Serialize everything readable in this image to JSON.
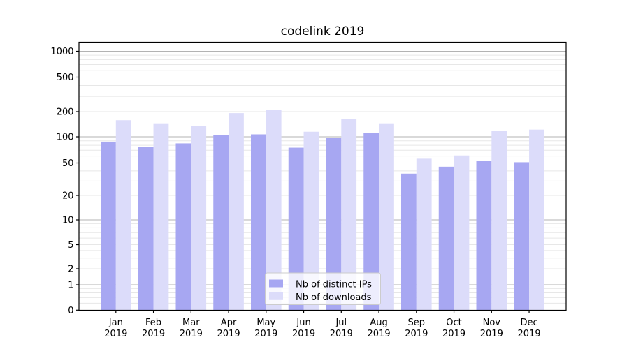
{
  "chart_data": {
    "type": "bar",
    "title": "codelink 2019",
    "categories": [
      "Jan",
      "Feb",
      "Mar",
      "Apr",
      "May",
      "Jun",
      "Jul",
      "Aug",
      "Sep",
      "Oct",
      "Nov",
      "Dec"
    ],
    "year": "2019",
    "series": [
      {
        "name": "Nb of distinct IPs",
        "color": "#a7a7f2",
        "values": [
          88,
          77,
          84,
          105,
          107,
          75,
          97,
          111,
          37,
          45,
          53,
          51
        ]
      },
      {
        "name": "Nb of downloads",
        "color": "#dcdcfa",
        "values": [
          158,
          145,
          134,
          192,
          209,
          115,
          164,
          145,
          56,
          61,
          118,
          122
        ]
      }
    ],
    "yticks": [
      0,
      1,
      2,
      5,
      10,
      20,
      50,
      100,
      200,
      500,
      1000
    ],
    "ylim": [
      0,
      1300
    ],
    "yscale": "symlog-like",
    "grid": "horizontal",
    "legend_position": "lower-center",
    "colors": {
      "major_grid": "#b3b3b3",
      "minor_grid": "#e7e7e7",
      "spine": "#000000",
      "legend_border": "#cccccc"
    }
  }
}
